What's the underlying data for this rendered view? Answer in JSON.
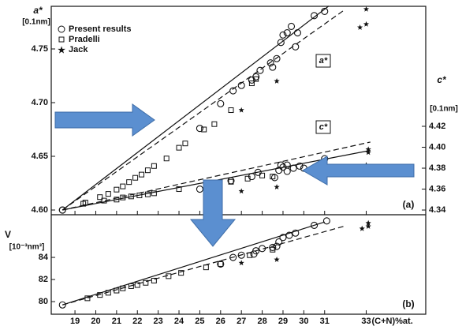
{
  "chart_data": [
    {
      "type": "scatter",
      "panel_label": "(a)",
      "ylabel": "a*",
      "yunit": "[0.1nm]",
      "y2label": "c*",
      "y2unit": "[0.1nm]",
      "xlim": [
        17.86,
        35.86
      ],
      "ylim": [
        4.5956,
        4.7897
      ],
      "yticks": [
        {
          "value": 4.6,
          "label": "4.60"
        },
        4.65,
        {
          "value": 4.7,
          "label": "4.70"
        },
        4.75
      ],
      "y2lim": [
        4.3355,
        4.5347
      ],
      "y2ticks": [
        4.34,
        4.36,
        4.38,
        {
          "value": 4.4,
          "label": "4.40"
        },
        4.42
      ],
      "series": [
        {
          "name": "Present results",
          "marker": "circle",
          "x": [
            18.4,
            25.0,
            26.0,
            26.6,
            27.0,
            27.5,
            27.7,
            27.9,
            28.4,
            28.5,
            28.7,
            28.9,
            29.0,
            29.2,
            29.4,
            29.6,
            29.7,
            30.5,
            31.0
          ],
          "values": [
            4.6,
            4.676,
            4.699,
            4.711,
            4.716,
            4.721,
            4.724,
            4.73,
            4.737,
            4.733,
            4.741,
            4.756,
            4.763,
            4.765,
            4.771,
            4.752,
            4.765,
            4.781,
            4.785
          ]
        },
        {
          "name": "Pradelli",
          "marker": "square",
          "x": [
            19.5,
            20.2,
            20.6,
            21.0,
            21.3,
            21.6,
            21.9,
            22.2,
            22.5,
            22.8,
            23.4,
            24.0,
            24.3,
            25.2,
            25.7,
            26.5,
            27.5,
            27.7
          ],
          "values": [
            4.607,
            4.612,
            4.615,
            4.619,
            4.622,
            4.626,
            4.63,
            4.633,
            4.637,
            4.641,
            4.648,
            4.658,
            4.662,
            4.675,
            4.68,
            4.693,
            4.718,
            4.722
          ]
        },
        {
          "name": "Jack",
          "marker": "star",
          "x": [
            27.0,
            28.7,
            32.7,
            33.0,
            33.0
          ],
          "values": [
            4.693,
            4.72,
            4.77,
            4.773,
            4.787
          ]
        },
        {
          "marker": "circle",
          "axis": "y2",
          "x": [
            18.4,
            25.0,
            26.5,
            27.5,
            27.8,
            28.6,
            28.8,
            28.9,
            29.0,
            29.2,
            29.2,
            29.5,
            29.8,
            30.0,
            31.0
          ],
          "values": [
            4.34,
            4.36,
            4.368,
            4.372,
            4.376,
            4.371,
            4.378,
            4.383,
            4.381,
            4.377,
            4.383,
            4.38,
            4.382,
            4.38,
            4.389
          ]
        },
        {
          "marker": "square",
          "axis": "y2",
          "x": [
            19.4,
            20.4,
            21.0,
            21.3,
            21.7,
            22.1,
            22.5,
            22.8,
            24.0,
            25.3,
            26.5,
            27.3,
            28.0,
            28.5
          ],
          "values": [
            4.346,
            4.349,
            4.35,
            4.352,
            4.353,
            4.354,
            4.355,
            4.356,
            4.36,
            4.362,
            4.367,
            4.37,
            4.373,
            4.372
          ]
        },
        {
          "marker": "star",
          "axis": "y2",
          "x": [
            27.0,
            28.7,
            33.0,
            33.1,
            33.1
          ],
          "values": [
            4.358,
            4.362,
            4.383,
            4.395,
            4.398
          ]
        }
      ],
      "lines": [
        {
          "dash": false,
          "x": [
            18.4,
            31.2
          ],
          "values": [
            4.6,
            4.79
          ]
        },
        {
          "dash": true,
          "x": [
            18.4,
            32.0
          ],
          "values": [
            4.6,
            4.787
          ]
        },
        {
          "dash": false,
          "axis": "y2",
          "x": [
            18.4,
            33.2
          ],
          "values": [
            4.34,
            4.397
          ]
        },
        {
          "dash": true,
          "axis": "y2",
          "x": [
            18.4,
            33.2
          ],
          "values": [
            4.34,
            4.405
          ]
        }
      ],
      "annotations": [
        "a*",
        "c*"
      ]
    },
    {
      "type": "scatter",
      "panel_label": "(b)",
      "ylabel": "V",
      "yunit": "[10⁻³nm³]",
      "xlabel": "(C+N)%at.",
      "xlim": [
        17.86,
        35.86
      ],
      "xticks": [
        19,
        20,
        21,
        22,
        23,
        24,
        25,
        26,
        27,
        28,
        29,
        30,
        31,
        33
      ],
      "ylim": [
        78.86,
        87.86
      ],
      "yticks": [
        80,
        82,
        84
      ],
      "series": [
        {
          "marker": "circle",
          "x": [
            18.4,
            26.0,
            26.6,
            27.0,
            27.6,
            27.7,
            28.0,
            28.5,
            28.7,
            28.8,
            29.0,
            29.3,
            29.6,
            30.5,
            31.1
          ],
          "values": [
            79.7,
            83.4,
            84.0,
            84.2,
            84.3,
            84.6,
            84.8,
            84.9,
            85.0,
            85.4,
            85.8,
            86.0,
            86.2,
            86.9,
            87.3
          ]
        },
        {
          "marker": "square",
          "x": [
            19.6,
            20.2,
            20.6,
            21.0,
            21.3,
            21.7,
            22.0,
            22.4,
            22.8,
            23.5,
            24.1,
            25.3,
            26.0,
            27.4,
            28.5
          ],
          "values": [
            80.3,
            80.6,
            80.8,
            81.0,
            81.2,
            81.4,
            81.5,
            81.7,
            81.9,
            82.3,
            82.6,
            83.1,
            83.4,
            84.2,
            84.7
          ]
        },
        {
          "marker": "star",
          "x": [
            27.0,
            28.7,
            32.8,
            33.1,
            33.1
          ],
          "values": [
            83.5,
            83.8,
            86.6,
            86.8,
            87.1
          ]
        }
      ],
      "lines": [
        {
          "dash": false,
          "x": [
            18.4,
            31.0
          ],
          "values": [
            79.7,
            87.2
          ]
        },
        {
          "dash": true,
          "x": [
            18.4,
            31.9
          ],
          "values": [
            79.7,
            86.8
          ]
        }
      ]
    }
  ]
}
